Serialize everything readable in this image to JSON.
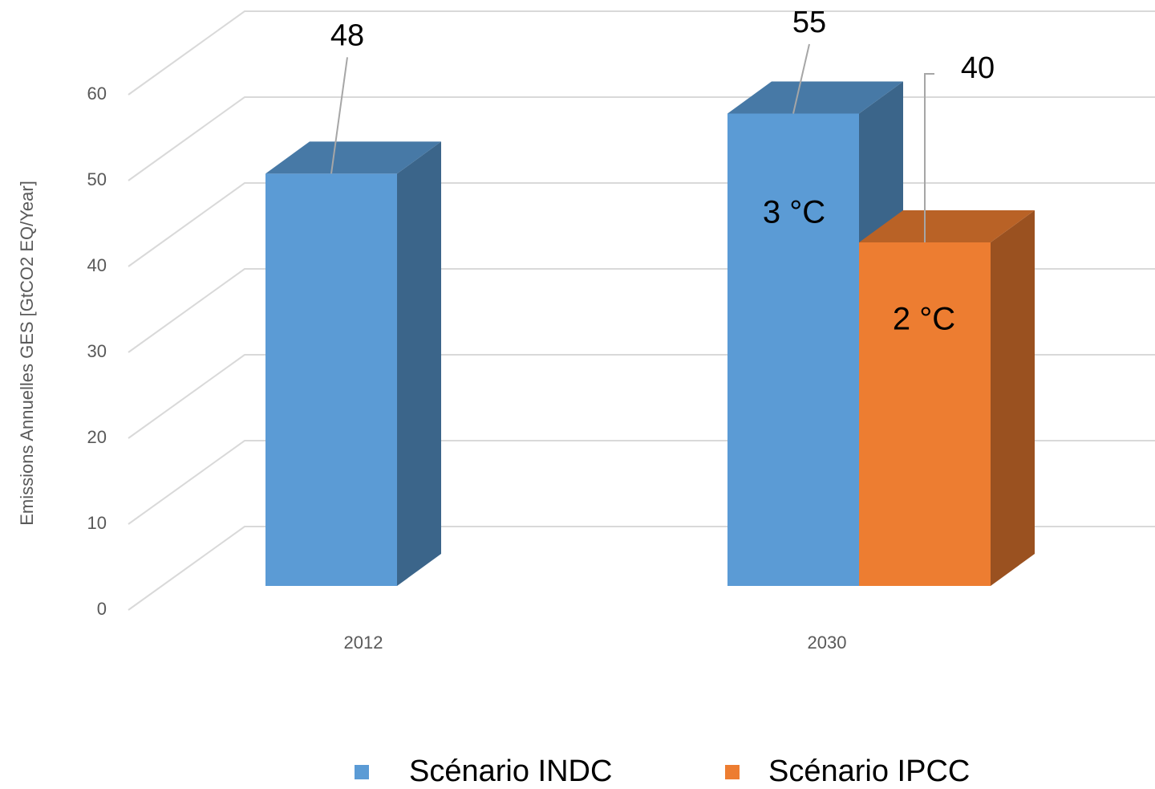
{
  "chart_data": {
    "type": "bar3d",
    "y_axis_label": "Emissions Annuelles GES [GtCO2 EQ/Year]",
    "categories": [
      "2012",
      "2030"
    ],
    "series": [
      {
        "name": "Scénario INDC",
        "color": "#5b9bd5",
        "values": [
          48,
          55
        ]
      },
      {
        "name": "Scénario IPCC",
        "color": "#ed7d31",
        "values": [
          null,
          40
        ]
      }
    ],
    "annotations": [
      "3 °C",
      "2 °C"
    ],
    "ylim": [
      0,
      60
    ],
    "yticks": [
      0,
      10,
      20,
      30,
      40,
      50,
      60
    ],
    "grid": true,
    "legend": "bottom"
  }
}
